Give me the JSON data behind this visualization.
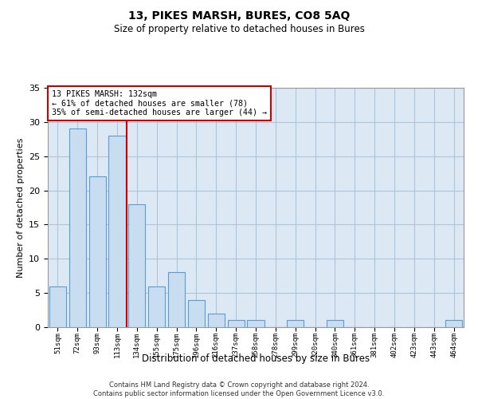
{
  "title1": "13, PIKES MARSH, BURES, CO8 5AQ",
  "title2": "Size of property relative to detached houses in Bures",
  "xlabel": "Distribution of detached houses by size in Bures",
  "ylabel": "Number of detached properties",
  "categories": [
    "51sqm",
    "72sqm",
    "93sqm",
    "113sqm",
    "134sqm",
    "155sqm",
    "175sqm",
    "196sqm",
    "216sqm",
    "237sqm",
    "258sqm",
    "278sqm",
    "299sqm",
    "320sqm",
    "340sqm",
    "361sqm",
    "381sqm",
    "402sqm",
    "423sqm",
    "443sqm",
    "464sqm"
  ],
  "values": [
    6,
    29,
    22,
    28,
    18,
    6,
    8,
    4,
    2,
    1,
    1,
    0,
    1,
    0,
    1,
    0,
    0,
    0,
    0,
    0,
    1
  ],
  "ylim": [
    0,
    35
  ],
  "yticks": [
    0,
    5,
    10,
    15,
    20,
    25,
    30,
    35
  ],
  "property_line_index": 4,
  "annotation_line1": "13 PIKES MARSH: 132sqm",
  "annotation_line2": "← 61% of detached houses are smaller (78)",
  "annotation_line3": "35% of semi-detached houses are larger (44) →",
  "bar_color": "#c8ddf0",
  "bar_edge_color": "#5b9bd5",
  "line_color": "#cc0000",
  "annotation_box_edge": "#cc0000",
  "background_color": "#ffffff",
  "plot_bg_color": "#dce9f5",
  "grid_color": "#b0c4d8",
  "footer1": "Contains HM Land Registry data © Crown copyright and database right 2024.",
  "footer2": "Contains public sector information licensed under the Open Government Licence v3.0."
}
